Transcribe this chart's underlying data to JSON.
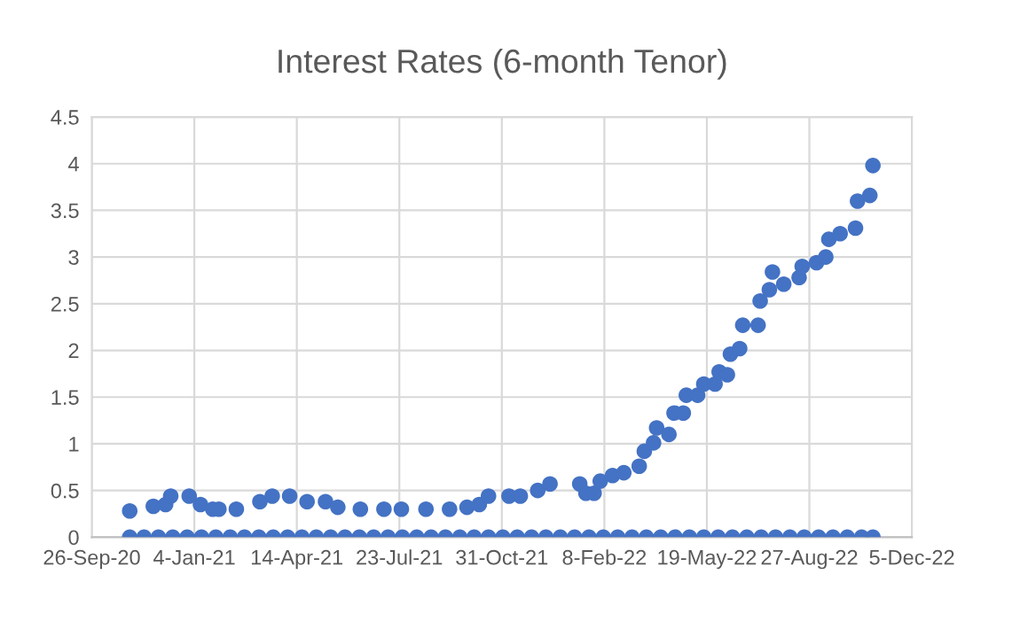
{
  "chart_data": {
    "type": "scatter",
    "title": "Interest Rates (6-month Tenor)",
    "xlim": [
      "2020-09-26",
      "2022-12-05"
    ],
    "xticks": [
      {
        "value": "2020-09-26",
        "label": "26-Sep-20"
      },
      {
        "value": "2021-01-04",
        "label": "4-Jan-21"
      },
      {
        "value": "2021-04-14",
        "label": "14-Apr-21"
      },
      {
        "value": "2021-07-23",
        "label": "23-Jul-21"
      },
      {
        "value": "2021-10-31",
        "label": "31-Oct-21"
      },
      {
        "value": "2022-02-08",
        "label": "8-Feb-22"
      },
      {
        "value": "2022-05-19",
        "label": "19-May-22"
      },
      {
        "value": "2022-08-27",
        "label": "27-Aug-22"
      },
      {
        "value": "2022-12-05",
        "label": "5-Dec-22"
      }
    ],
    "ylim": [
      0,
      4.5
    ],
    "yticks": [
      0,
      0.5,
      1,
      1.5,
      2,
      2.5,
      3,
      3.5,
      4,
      4.5
    ],
    "grid": true,
    "marker": "circle",
    "series": [
      {
        "color": "#4472c4",
        "x": [
          "2020-11-02",
          "2020-11-25",
          "2020-12-07",
          "2020-12-12",
          "2020-12-30",
          "2021-01-10",
          "2021-01-22",
          "2021-01-28",
          "2021-02-14",
          "2021-03-09",
          "2021-03-21",
          "2021-04-07",
          "2021-04-24",
          "2021-05-12",
          "2021-05-24",
          "2021-06-15",
          "2021-07-08",
          "2021-07-25",
          "2021-08-18",
          "2021-09-10",
          "2021-09-27",
          "2021-10-09",
          "2021-10-18",
          "2021-11-07",
          "2021-11-18",
          "2021-12-05",
          "2021-12-17",
          "2022-01-15",
          "2022-01-21",
          "2022-01-29",
          "2022-02-04",
          "2022-02-16",
          "2022-02-27",
          "2022-03-14",
          "2022-03-19",
          "2022-03-28",
          "2022-03-31",
          "2022-04-12",
          "2022-04-17",
          "2022-04-26",
          "2022-04-29",
          "2022-05-10",
          "2022-05-16",
          "2022-05-27",
          "2022-05-31",
          "2022-06-08",
          "2022-06-11",
          "2022-06-20",
          "2022-06-23",
          "2022-07-08",
          "2022-07-10",
          "2022-07-19",
          "2022-07-22",
          "2022-08-02",
          "2022-08-17",
          "2022-08-20",
          "2022-09-03",
          "2022-09-12",
          "2022-09-15",
          "2022-09-26",
          "2022-10-11",
          "2022-10-13",
          "2022-10-25",
          "2022-10-28"
        ],
        "values": [
          0.28,
          0.33,
          0.35,
          0.44,
          0.44,
          0.35,
          0.3,
          0.3,
          0.3,
          0.38,
          0.44,
          0.44,
          0.38,
          0.38,
          0.32,
          0.3,
          0.3,
          0.3,
          0.3,
          0.3,
          0.32,
          0.35,
          0.44,
          0.44,
          0.44,
          0.5,
          0.57,
          0.57,
          0.47,
          0.47,
          0.6,
          0.66,
          0.69,
          0.76,
          0.92,
          1.01,
          1.17,
          1.1,
          1.33,
          1.33,
          1.52,
          1.52,
          1.64,
          1.64,
          1.77,
          1.74,
          1.96,
          2.02,
          2.27,
          2.27,
          2.53,
          2.65,
          2.84,
          2.71,
          2.78,
          2.9,
          2.94,
          3.0,
          3.19,
          3.25,
          3.31,
          3.6,
          3.66,
          3.98
        ]
      },
      {
        "color": "#4472c4",
        "x": [
          "2020-11-02",
          "2020-11-16",
          "2020-11-30",
          "2020-12-14",
          "2020-12-28",
          "2021-01-11",
          "2021-01-25",
          "2021-02-08",
          "2021-02-22",
          "2021-03-08",
          "2021-03-22",
          "2021-04-05",
          "2021-04-19",
          "2021-05-03",
          "2021-05-17",
          "2021-05-31",
          "2021-06-14",
          "2021-06-28",
          "2021-07-12",
          "2021-07-26",
          "2021-08-09",
          "2021-08-23",
          "2021-09-06",
          "2021-09-20",
          "2021-10-04",
          "2021-10-18",
          "2021-11-01",
          "2021-11-15",
          "2021-11-29",
          "2021-12-13",
          "2021-12-27",
          "2022-01-10",
          "2022-01-24",
          "2022-02-07",
          "2022-02-21",
          "2022-03-07",
          "2022-03-21",
          "2022-04-04",
          "2022-04-18",
          "2022-05-02",
          "2022-05-16",
          "2022-05-30",
          "2022-06-13",
          "2022-06-27",
          "2022-07-11",
          "2022-07-25",
          "2022-08-08",
          "2022-08-22",
          "2022-09-05",
          "2022-09-19",
          "2022-10-03",
          "2022-10-17",
          "2022-10-28"
        ],
        "values": [
          0,
          0,
          0,
          0,
          0,
          0,
          0,
          0,
          0,
          0,
          0,
          0,
          0,
          0,
          0,
          0,
          0,
          0,
          0,
          0,
          0,
          0,
          0,
          0,
          0,
          0,
          0,
          0,
          0,
          0,
          0,
          0,
          0,
          0,
          0,
          0,
          0,
          0,
          0,
          0,
          0,
          0,
          0,
          0,
          0,
          0,
          0,
          0,
          0,
          0,
          0,
          0,
          0
        ]
      }
    ]
  }
}
